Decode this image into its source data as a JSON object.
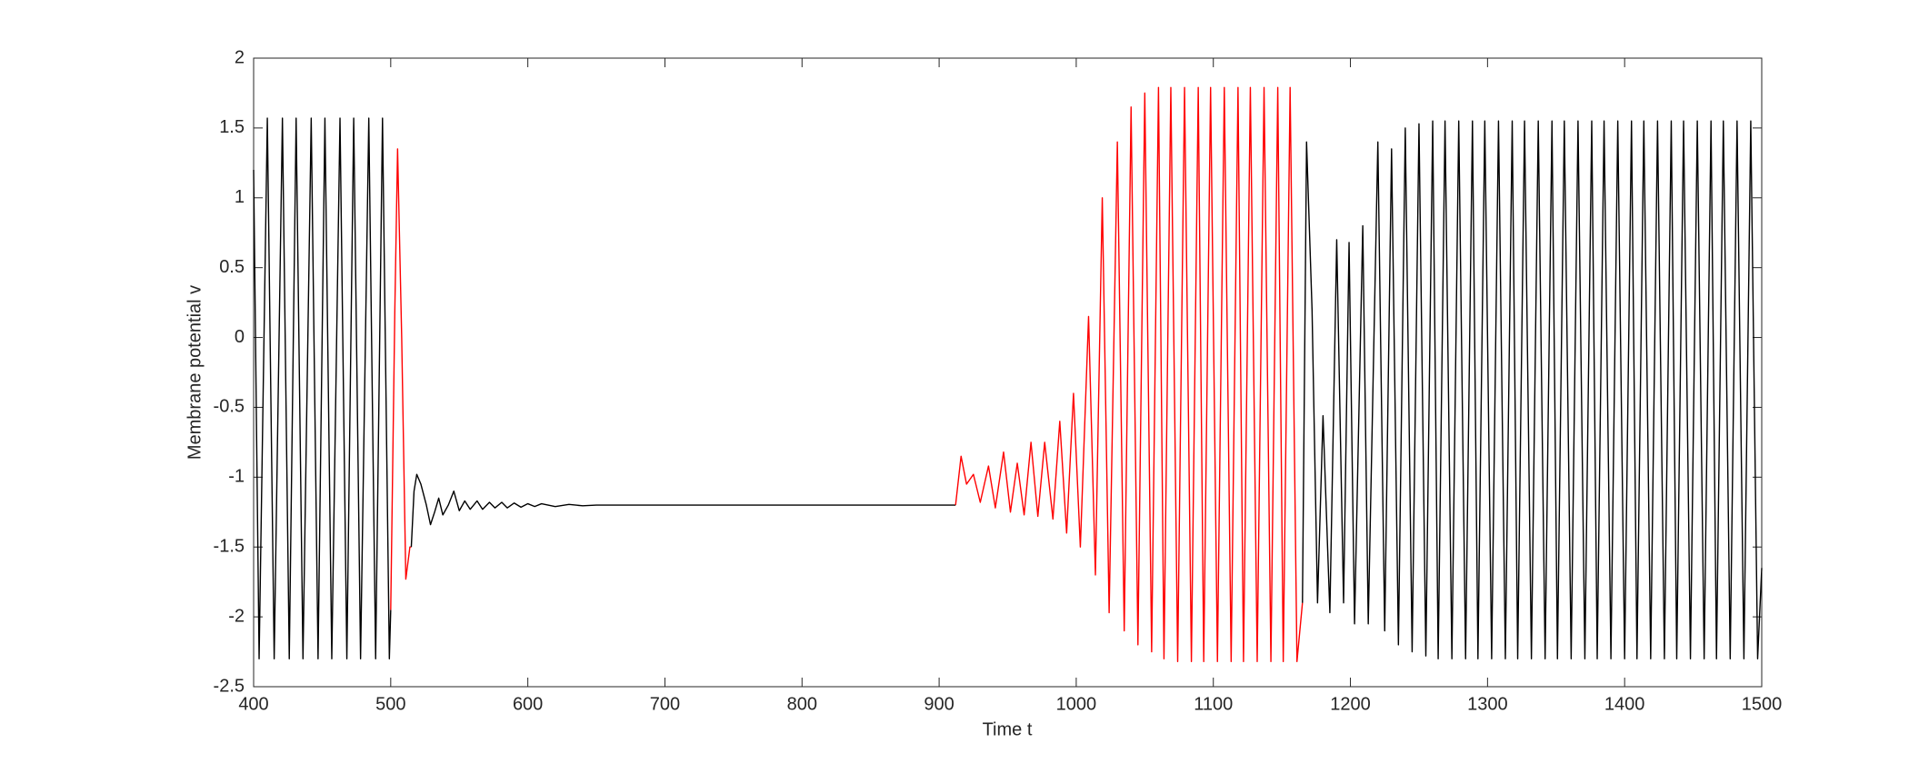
{
  "chart_data": {
    "type": "line",
    "xlabel": "Time t",
    "ylabel": "Membrane potential v",
    "xlim": [
      400,
      1500
    ],
    "xticks": [
      400,
      500,
      600,
      700,
      800,
      900,
      1000,
      1100,
      1200,
      1300,
      1400,
      1500
    ],
    "ylim": [
      -2.5,
      2
    ],
    "yticks": [
      -2.5,
      -2,
      -1.5,
      -1,
      -0.5,
      0,
      0.5,
      1,
      1.5,
      2
    ],
    "grid": false,
    "series": [
      {
        "color": "#000000",
        "x": [
          400,
          404,
          410,
          415,
          421,
          426,
          431,
          436,
          442,
          447,
          452,
          457,
          463,
          468,
          473,
          478,
          484,
          489,
          494,
          499,
          500
        ],
        "values": [
          1.2,
          -2.3,
          1.57,
          -2.3,
          1.57,
          -2.3,
          1.57,
          -2.3,
          1.57,
          -2.3,
          1.57,
          -2.3,
          1.57,
          -2.3,
          1.57,
          -2.3,
          1.57,
          -2.3,
          1.57,
          -2.3,
          -1.95
        ]
      },
      {
        "color": "#ff0000",
        "x": [
          500,
          503,
          505,
          508,
          511,
          514,
          515
        ],
        "values": [
          -1.95,
          0.2,
          1.35,
          0.0,
          -1.73,
          -1.5,
          -1.5
        ]
      },
      {
        "color": "#000000",
        "x": [
          515,
          517,
          519,
          522,
          526,
          529,
          532,
          535,
          538,
          542,
          546,
          550,
          554,
          558,
          563,
          567,
          572,
          576,
          581,
          585,
          590,
          595,
          600,
          605,
          610,
          620,
          630,
          640,
          650,
          700,
          800,
          912
        ],
        "values": [
          -1.5,
          -1.1,
          -0.98,
          -1.05,
          -1.2,
          -1.34,
          -1.25,
          -1.15,
          -1.27,
          -1.2,
          -1.1,
          -1.24,
          -1.17,
          -1.23,
          -1.17,
          -1.23,
          -1.18,
          -1.22,
          -1.18,
          -1.22,
          -1.185,
          -1.215,
          -1.19,
          -1.21,
          -1.19,
          -1.21,
          -1.195,
          -1.205,
          -1.2,
          -1.2,
          -1.2,
          -1.2
        ]
      },
      {
        "color": "#ff0000",
        "x": [
          912,
          916,
          920,
          925,
          930,
          936,
          941,
          947,
          952,
          957,
          962,
          967,
          972,
          977,
          983,
          988,
          993,
          998,
          1003,
          1009,
          1014,
          1019,
          1024,
          1030,
          1035,
          1040,
          1045,
          1050,
          1055,
          1060,
          1064,
          1069,
          1074,
          1079,
          1084,
          1089,
          1093,
          1098,
          1103,
          1108,
          1113,
          1118,
          1122,
          1127,
          1132,
          1137,
          1142,
          1147,
          1151,
          1156,
          1161,
          1165
        ],
        "values": [
          -1.2,
          -0.85,
          -1.05,
          -0.98,
          -1.18,
          -0.92,
          -1.22,
          -0.82,
          -1.25,
          -0.9,
          -1.27,
          -0.75,
          -1.28,
          -0.75,
          -1.3,
          -0.6,
          -1.4,
          -0.4,
          -1.5,
          0.15,
          -1.7,
          1.0,
          -1.97,
          1.4,
          -2.1,
          1.65,
          -2.2,
          1.75,
          -2.25,
          1.79,
          -2.3,
          1.79,
          -2.32,
          1.79,
          -2.32,
          1.79,
          -2.32,
          1.79,
          -2.32,
          1.79,
          -2.32,
          1.79,
          -2.32,
          1.79,
          -2.32,
          1.79,
          -2.32,
          1.79,
          -2.32,
          1.79,
          -2.32,
          -1.9
        ]
      },
      {
        "color": "#000000",
        "x": [
          1165,
          1168,
          1172,
          1176,
          1180,
          1185,
          1190,
          1195,
          1199,
          1203,
          1209,
          1213,
          1220,
          1225,
          1230,
          1235,
          1240,
          1245,
          1250,
          1255,
          1260,
          1264,
          1269,
          1274,
          1279,
          1284,
          1289,
          1293,
          1298,
          1303,
          1308,
          1313,
          1318,
          1322,
          1327,
          1332,
          1337,
          1342,
          1347,
          1351,
          1356,
          1361,
          1366,
          1371,
          1376,
          1380,
          1385,
          1390,
          1395,
          1400,
          1405,
          1409,
          1414,
          1419,
          1424,
          1429,
          1434,
          1438,
          1443,
          1448,
          1453,
          1458,
          1463,
          1467,
          1472,
          1477,
          1482,
          1487,
          1492,
          1497,
          1500
        ],
        "values": [
          -1.9,
          1.4,
          0.2,
          -1.9,
          -0.56,
          -1.97,
          0.7,
          -1.9,
          0.68,
          -2.05,
          0.8,
          -2.05,
          1.4,
          -2.1,
          1.35,
          -2.2,
          1.5,
          -2.25,
          1.53,
          -2.28,
          1.55,
          -2.3,
          1.55,
          -2.3,
          1.55,
          -2.3,
          1.55,
          -2.3,
          1.55,
          -2.3,
          1.55,
          -2.3,
          1.55,
          -2.3,
          1.55,
          -2.3,
          1.55,
          -2.3,
          1.55,
          -2.3,
          1.55,
          -2.3,
          1.55,
          -2.3,
          1.55,
          -2.3,
          1.55,
          -2.3,
          1.55,
          -2.3,
          1.55,
          -2.3,
          1.55,
          -2.3,
          1.55,
          -2.3,
          1.55,
          -2.3,
          1.55,
          -2.3,
          1.55,
          -2.3,
          1.55,
          -2.3,
          1.55,
          -2.3,
          1.55,
          -2.3,
          1.55,
          -2.3,
          -1.65
        ]
      }
    ]
  }
}
